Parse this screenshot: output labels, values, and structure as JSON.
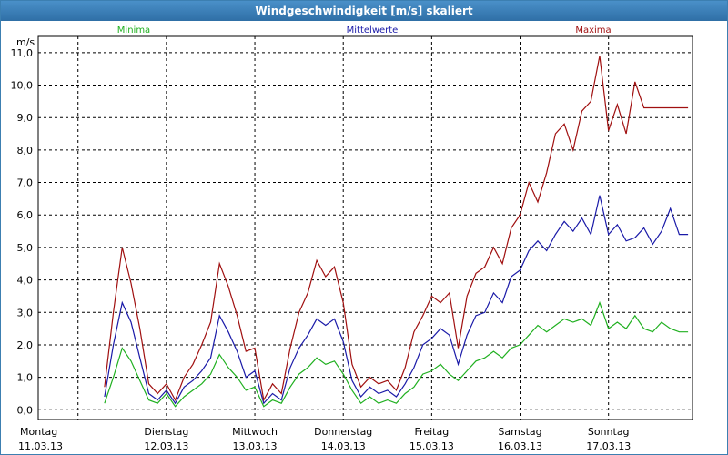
{
  "window": {
    "title": "Windgeschwindigkeit [m/s] skaliert"
  },
  "chart_data": {
    "type": "line",
    "title": "Windgeschwindigkeit [m/s] skaliert",
    "ylabel": "m/s",
    "ylim": [
      -0.3,
      11.5
    ],
    "yticks": [
      "0,0",
      "1,0",
      "2,0",
      "3,0",
      "4,0",
      "5,0",
      "6,0",
      "7,0",
      "8,0",
      "9,0",
      "10,0",
      "11,0"
    ],
    "ytick_values": [
      0,
      1,
      2,
      3,
      4,
      5,
      6,
      7,
      8,
      9,
      10,
      11
    ],
    "x_days": [
      {
        "weekday": "Montag",
        "date": "11.03.13"
      },
      {
        "weekday": "Dienstag",
        "date": "12.03.13"
      },
      {
        "weekday": "Mittwoch",
        "date": "13.03.13"
      },
      {
        "weekday": "Donnerstag",
        "date": "14.03.13"
      },
      {
        "weekday": "Freitag",
        "date": "15.03.13"
      },
      {
        "weekday": "Samstag",
        "date": "16.03.13"
      },
      {
        "weekday": "Sonntag",
        "date": "17.03.13"
      }
    ],
    "xlim": [
      -0.45,
      6.95
    ],
    "grid": true,
    "series": [
      {
        "name": "Minima",
        "color": "#20b020",
        "x": [
          0.3,
          0.4,
          0.5,
          0.6,
          0.7,
          0.8,
          0.9,
          1.0,
          1.1,
          1.2,
          1.3,
          1.4,
          1.5,
          1.6,
          1.7,
          1.8,
          1.9,
          2.0,
          2.1,
          2.2,
          2.3,
          2.4,
          2.5,
          2.6,
          2.7,
          2.8,
          2.9,
          3.0,
          3.1,
          3.2,
          3.3,
          3.4,
          3.5,
          3.6,
          3.7,
          3.8,
          3.9,
          4.0,
          4.1,
          4.2,
          4.3,
          4.4,
          4.5,
          4.6,
          4.7,
          4.8,
          4.9,
          5.0,
          5.1,
          5.2,
          5.3,
          5.4,
          5.5,
          5.6,
          5.7,
          5.8,
          5.9,
          6.0,
          6.1,
          6.2,
          6.3,
          6.4,
          6.5,
          6.6,
          6.7,
          6.8,
          6.9
        ],
        "values": [
          0.2,
          1.0,
          1.9,
          1.5,
          0.9,
          0.3,
          0.2,
          0.5,
          0.1,
          0.4,
          0.6,
          0.8,
          1.1,
          1.7,
          1.3,
          1.0,
          0.6,
          0.7,
          0.1,
          0.3,
          0.2,
          0.7,
          1.1,
          1.3,
          1.6,
          1.4,
          1.5,
          1.1,
          0.6,
          0.2,
          0.4,
          0.2,
          0.3,
          0.2,
          0.5,
          0.7,
          1.1,
          1.2,
          1.4,
          1.1,
          0.9,
          1.2,
          1.5,
          1.6,
          1.8,
          1.6,
          1.9,
          2.0,
          2.3,
          2.6,
          2.4,
          2.6,
          2.8,
          2.7,
          2.8,
          2.6,
          3.3,
          2.5,
          2.7,
          2.5,
          2.9,
          2.5,
          2.4,
          2.7,
          2.5,
          2.4,
          2.4
        ]
      },
      {
        "name": "Mittelwerte",
        "color": "#1a1aa8",
        "x": [
          0.3,
          0.4,
          0.5,
          0.6,
          0.7,
          0.8,
          0.9,
          1.0,
          1.1,
          1.2,
          1.3,
          1.4,
          1.5,
          1.6,
          1.7,
          1.8,
          1.9,
          2.0,
          2.1,
          2.2,
          2.3,
          2.4,
          2.5,
          2.6,
          2.7,
          2.8,
          2.9,
          3.0,
          3.1,
          3.2,
          3.3,
          3.4,
          3.5,
          3.6,
          3.7,
          3.8,
          3.9,
          4.0,
          4.1,
          4.2,
          4.3,
          4.4,
          4.5,
          4.6,
          4.7,
          4.8,
          4.9,
          5.0,
          5.1,
          5.2,
          5.3,
          5.4,
          5.5,
          5.6,
          5.7,
          5.8,
          5.9,
          6.0,
          6.1,
          6.2,
          6.3,
          6.4,
          6.5,
          6.6,
          6.7,
          6.8,
          6.9
        ],
        "values": [
          0.4,
          2.0,
          3.3,
          2.7,
          1.6,
          0.5,
          0.3,
          0.6,
          0.2,
          0.7,
          0.9,
          1.2,
          1.6,
          2.9,
          2.4,
          1.8,
          1.0,
          1.2,
          0.2,
          0.5,
          0.3,
          1.3,
          1.9,
          2.3,
          2.8,
          2.6,
          2.8,
          2.1,
          0.9,
          0.4,
          0.7,
          0.5,
          0.6,
          0.4,
          0.8,
          1.3,
          2.0,
          2.2,
          2.5,
          2.3,
          1.4,
          2.3,
          2.9,
          3.0,
          3.6,
          3.3,
          4.1,
          4.3,
          4.9,
          5.2,
          4.9,
          5.4,
          5.8,
          5.5,
          5.9,
          5.4,
          6.6,
          5.4,
          5.7,
          5.2,
          5.3,
          5.6,
          5.1,
          5.5,
          6.2,
          5.4,
          5.4
        ]
      },
      {
        "name": "Maxima",
        "color": "#a01010",
        "x": [
          0.3,
          0.4,
          0.5,
          0.6,
          0.7,
          0.8,
          0.9,
          1.0,
          1.1,
          1.2,
          1.3,
          1.4,
          1.5,
          1.6,
          1.7,
          1.8,
          1.9,
          2.0,
          2.1,
          2.2,
          2.3,
          2.4,
          2.5,
          2.6,
          2.7,
          2.8,
          2.9,
          3.0,
          3.1,
          3.2,
          3.3,
          3.4,
          3.5,
          3.6,
          3.7,
          3.8,
          3.9,
          4.0,
          4.1,
          4.2,
          4.3,
          4.4,
          4.5,
          4.6,
          4.7,
          4.8,
          4.9,
          5.0,
          5.1,
          5.2,
          5.3,
          5.4,
          5.5,
          5.6,
          5.7,
          5.8,
          5.9,
          6.0,
          6.1,
          6.2,
          6.3,
          6.4,
          6.5,
          6.6,
          6.7,
          6.8,
          6.9
        ],
        "values": [
          0.7,
          3.0,
          5.0,
          3.9,
          2.5,
          0.8,
          0.5,
          0.8,
          0.3,
          1.0,
          1.4,
          2.0,
          2.7,
          4.5,
          3.8,
          2.9,
          1.8,
          1.9,
          0.3,
          0.8,
          0.5,
          1.9,
          3.0,
          3.6,
          4.6,
          4.1,
          4.4,
          3.3,
          1.4,
          0.7,
          1.0,
          0.8,
          0.9,
          0.6,
          1.3,
          2.4,
          2.9,
          3.5,
          3.3,
          3.6,
          1.9,
          3.5,
          4.2,
          4.4,
          5.0,
          4.5,
          5.6,
          6.0,
          7.0,
          6.4,
          7.3,
          8.5,
          8.8,
          8.0,
          9.2,
          9.5,
          10.9,
          8.6,
          9.4,
          8.5,
          10.1,
          9.3,
          9.3,
          9.3,
          9.3,
          9.3,
          9.3
        ]
      }
    ]
  }
}
